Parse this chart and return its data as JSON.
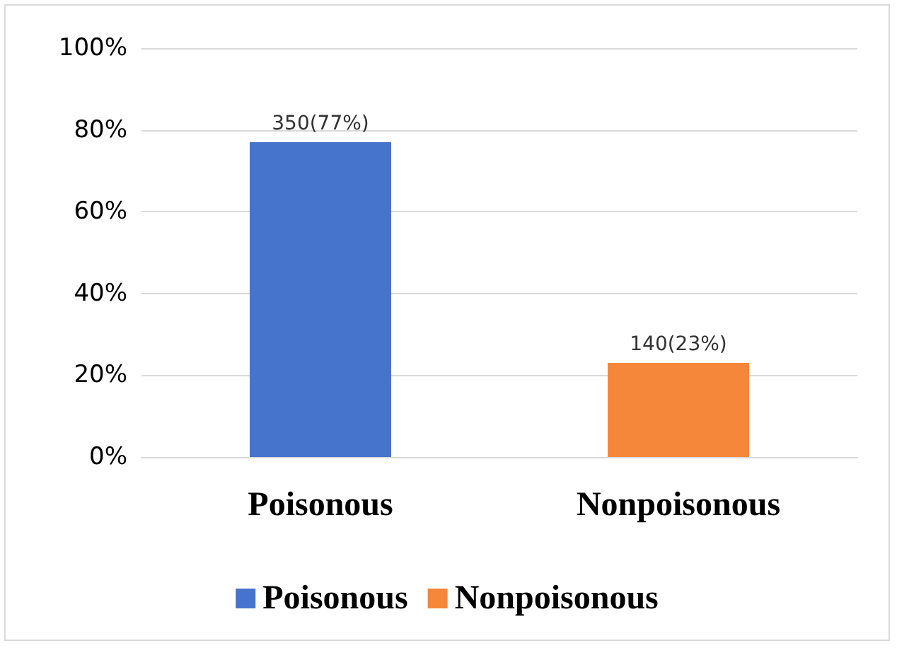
{
  "chart_data": {
    "type": "bar",
    "categories": [
      "Poisonous",
      "Nonpoisonous"
    ],
    "series": [
      {
        "name": "Poisonous",
        "color": "#4673cc",
        "values": [
          77,
          null
        ],
        "value_labels": [
          "350(77%)",
          null
        ]
      },
      {
        "name": "Nonpoisonous",
        "color": "#f5873a",
        "values": [
          null,
          23
        ],
        "value_labels": [
          null,
          "140(23%)"
        ]
      }
    ],
    "ylim": [
      0,
      100
    ],
    "yticks": [
      {
        "value": 0,
        "label": "0%"
      },
      {
        "value": 20,
        "label": "20%"
      },
      {
        "value": 40,
        "label": "40%"
      },
      {
        "value": 60,
        "label": "60%"
      },
      {
        "value": 80,
        "label": "80%"
      },
      {
        "value": 100,
        "label": "100%"
      }
    ],
    "grid": "y",
    "legend": "bottom"
  }
}
